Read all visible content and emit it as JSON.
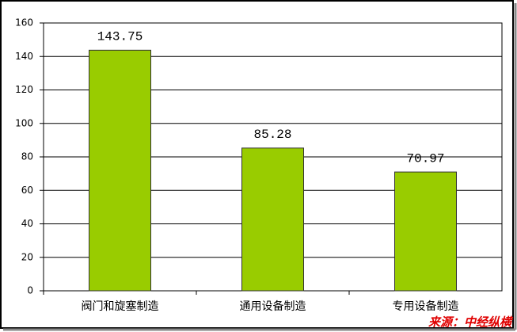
{
  "chart_data": {
    "type": "bar",
    "categories": [
      "阀门和旋塞制造",
      "通用设备制造",
      "专用设备制造"
    ],
    "values": [
      143.75,
      85.28,
      70.97
    ],
    "color": "#99cc00",
    "ylim": [
      0,
      160
    ],
    "yticks": [
      0,
      20,
      40,
      60,
      80,
      100,
      120,
      140,
      160
    ],
    "grid": true,
    "source": "来源：中经纵横"
  }
}
